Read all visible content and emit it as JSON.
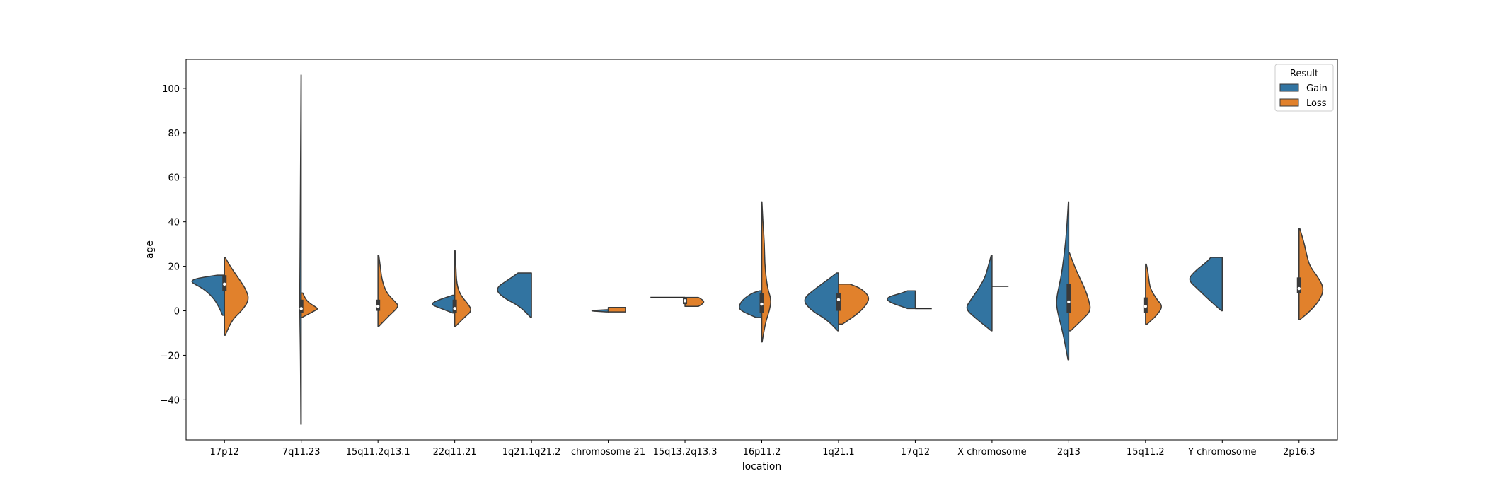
{
  "chart_data": {
    "type": "violin",
    "variant": "split",
    "xlabel": "location",
    "ylabel": "age",
    "ylim": [
      -58,
      113
    ],
    "yticks": [
      -40,
      -20,
      0,
      20,
      40,
      60,
      80,
      100
    ],
    "grid": false,
    "legend": {
      "title": "Result",
      "placement": "top-right",
      "entries": [
        {
          "label": "Gain",
          "color": "#3274a1"
        },
        {
          "label": "Loss",
          "color": "#e1812c"
        }
      ]
    },
    "categories": [
      "17p12",
      "7q11.23",
      "15q11.2q13.1",
      "22q11.21",
      "1q21.1q21.2",
      "chromosome 21",
      "15q13.2q13.3",
      "16p11.2",
      "1q21.1",
      "17q12",
      "X chromosome",
      "2q13",
      "15q11.2",
      "Y chromosome",
      "2p16.3"
    ],
    "series": [
      {
        "name": "Gain",
        "color": "#3274a1",
        "violins": [
          {
            "category": "17p12",
            "min": -2,
            "max": 16,
            "profile": [
              [
                -2,
                0.05
              ],
              [
                2,
                0.15
              ],
              [
                6,
                0.3
              ],
              [
                10,
                0.55
              ],
              [
                13,
                0.9
              ],
              [
                14.5,
                0.75
              ],
              [
                16,
                0.2
              ]
            ]
          },
          {
            "category": "7q11.23",
            "min": -51,
            "max": 106,
            "profile": [
              [
                -51,
                0.01
              ],
              [
                -20,
                0.02
              ],
              [
                0,
                0.04
              ],
              [
                30,
                0.03
              ],
              [
                60,
                0.02
              ],
              [
                106,
                0.005
              ]
            ]
          },
          null,
          {
            "category": "22q11.21",
            "min": -1,
            "max": 7,
            "profile": [
              [
                -1,
                0.05
              ],
              [
                1,
                0.35
              ],
              [
                3,
                0.65
              ],
              [
                5,
                0.4
              ],
              [
                7,
                0.05
              ]
            ]
          },
          {
            "category": "1q21.1q21.2",
            "min": -3,
            "max": 17,
            "profile": [
              [
                -3,
                0.02
              ],
              [
                2,
                0.3
              ],
              [
                6,
                0.75
              ],
              [
                10,
                0.95
              ],
              [
                14,
                0.6
              ],
              [
                17,
                0.35
              ]
            ]
          },
          {
            "category": "chromosome 21",
            "min": -0.5,
            "max": 0.5,
            "profile": [
              [
                -0.5,
                0.05
              ],
              [
                0,
                0.55
              ],
              [
                0.5,
                0.05
              ]
            ]
          },
          {
            "category": "15q13.2q13.3",
            "flat": 6,
            "width": 0.9
          },
          {
            "category": "16p11.2",
            "min": -3,
            "max": 9,
            "profile": [
              [
                -3,
                0.15
              ],
              [
                0,
                0.55
              ],
              [
                2,
                0.6
              ],
              [
                5,
                0.5
              ],
              [
                8,
                0.25
              ],
              [
                9,
                0.05
              ]
            ]
          },
          {
            "category": "1q21.1",
            "min": -9,
            "max": 17,
            "profile": [
              [
                -9,
                0.02
              ],
              [
                -4,
                0.3
              ],
              [
                0,
                0.7
              ],
              [
                5,
                0.95
              ],
              [
                10,
                0.6
              ],
              [
                15,
                0.2
              ],
              [
                17,
                0.05
              ]
            ]
          },
          {
            "category": "17q12",
            "min": 1,
            "max": 9,
            "profile": [
              [
                1,
                0.2
              ],
              [
                4,
                0.7
              ],
              [
                6,
                0.75
              ],
              [
                8,
                0.35
              ],
              [
                9,
                0.2
              ]
            ]
          },
          {
            "category": "X chromosome",
            "min": -9,
            "max": 25,
            "profile": [
              [
                -9,
                0.02
              ],
              [
                -3,
                0.45
              ],
              [
                1,
                0.7
              ],
              [
                5,
                0.55
              ],
              [
                10,
                0.35
              ],
              [
                15,
                0.18
              ],
              [
                20,
                0.1
              ],
              [
                25,
                0.02
              ]
            ]
          },
          {
            "category": "2q13",
            "min": -22,
            "max": 49,
            "profile": [
              [
                -22,
                0.02
              ],
              [
                -10,
                0.15
              ],
              [
                0,
                0.3
              ],
              [
                5,
                0.33
              ],
              [
                15,
                0.2
              ],
              [
                25,
                0.12
              ],
              [
                35,
                0.06
              ],
              [
                49,
                0.01
              ]
            ]
          },
          null,
          {
            "category": "Y chromosome",
            "min": 0,
            "max": 24,
            "profile": [
              [
                0,
                0.02
              ],
              [
                5,
                0.35
              ],
              [
                10,
                0.65
              ],
              [
                14,
                0.9
              ],
              [
                18,
                0.7
              ],
              [
                22,
                0.4
              ],
              [
                24,
                0.3
              ]
            ]
          },
          null
        ]
      },
      {
        "name": "Loss",
        "color": "#e1812c",
        "violins": [
          {
            "category": "17p12",
            "min": -11,
            "max": 24,
            "profile": [
              [
                -11,
                0.02
              ],
              [
                -4,
                0.2
              ],
              [
                0,
                0.45
              ],
              [
                5,
                0.65
              ],
              [
                10,
                0.55
              ],
              [
                15,
                0.35
              ],
              [
                20,
                0.15
              ],
              [
                24,
                0.02
              ]
            ]
          },
          {
            "category": "7q11.23",
            "min": -3,
            "max": 8,
            "profile": [
              [
                -3,
                0.02
              ],
              [
                0,
                0.35
              ],
              [
                1,
                0.45
              ],
              [
                3,
                0.25
              ],
              [
                5,
                0.12
              ],
              [
                8,
                0.04
              ]
            ]
          },
          {
            "category": "15q11.2q13.1",
            "min": -7,
            "max": 25,
            "profile": [
              [
                -7,
                0.02
              ],
              [
                -2,
                0.3
              ],
              [
                2,
                0.55
              ],
              [
                4,
                0.45
              ],
              [
                8,
                0.22
              ],
              [
                14,
                0.1
              ],
              [
                20,
                0.06
              ],
              [
                25,
                0.02
              ]
            ]
          },
          {
            "category": "22q11.21",
            "min": -7,
            "max": 27,
            "profile": [
              [
                -7,
                0.02
              ],
              [
                -3,
                0.25
              ],
              [
                0,
                0.45
              ],
              [
                3,
                0.35
              ],
              [
                7,
                0.15
              ],
              [
                12,
                0.05
              ],
              [
                20,
                0.03
              ],
              [
                27,
                0.01
              ]
            ]
          },
          null,
          {
            "category": "chromosome 21",
            "min": -0.5,
            "max": 1.5,
            "profile": [
              [
                -0.5,
                0.45
              ],
              [
                0.5,
                0.45
              ],
              [
                1.5,
                0.45
              ]
            ]
          },
          {
            "category": "15q13.2q13.3",
            "min": 2,
            "max": 6,
            "profile": [
              [
                2,
                0.35
              ],
              [
                3,
                0.45
              ],
              [
                4,
                0.5
              ],
              [
                5,
                0.45
              ],
              [
                6,
                0.35
              ]
            ]
          },
          {
            "category": "16p11.2",
            "min": -14,
            "max": 49,
            "profile": [
              [
                -14,
                0.01
              ],
              [
                -5,
                0.1
              ],
              [
                0,
                0.2
              ],
              [
                5,
                0.25
              ],
              [
                10,
                0.15
              ],
              [
                20,
                0.08
              ],
              [
                30,
                0.07
              ],
              [
                40,
                0.03
              ],
              [
                49,
                0.005
              ]
            ]
          },
          {
            "category": "1q21.1",
            "min": -6,
            "max": 12,
            "profile": [
              [
                -6,
                0.1
              ],
              [
                -2,
                0.45
              ],
              [
                2,
                0.7
              ],
              [
                6,
                0.82
              ],
              [
                10,
                0.6
              ],
              [
                12,
                0.3
              ]
            ]
          },
          {
            "category": "17q12",
            "flat": 1,
            "width": 0.43
          },
          {
            "category": "X chromosome",
            "flat": 11,
            "width": 0.43
          },
          {
            "category": "2q13",
            "min": -9,
            "max": 26,
            "profile": [
              [
                -9,
                0.05
              ],
              [
                -4,
                0.35
              ],
              [
                0,
                0.58
              ],
              [
                5,
                0.52
              ],
              [
                10,
                0.42
              ],
              [
                15,
                0.28
              ],
              [
                20,
                0.15
              ],
              [
                26,
                0.02
              ]
            ]
          },
          {
            "category": "15q11.2",
            "min": -6,
            "max": 21,
            "profile": [
              [
                -6,
                0.04
              ],
              [
                -2,
                0.3
              ],
              [
                2,
                0.45
              ],
              [
                5,
                0.3
              ],
              [
                10,
                0.12
              ],
              [
                15,
                0.08
              ],
              [
                18,
                0.06
              ],
              [
                21,
                0.02
              ]
            ]
          },
          null,
          {
            "category": "2p16.3",
            "min": -4,
            "max": 37,
            "profile": [
              [
                -4,
                0.02
              ],
              [
                0,
                0.3
              ],
              [
                5,
                0.55
              ],
              [
                10,
                0.65
              ],
              [
                15,
                0.5
              ],
              [
                20,
                0.28
              ],
              [
                25,
                0.2
              ],
              [
                30,
                0.14
              ],
              [
                37,
                0.02
              ]
            ]
          }
        ]
      }
    ],
    "boxes": [
      {
        "category": "17p12",
        "q1": 9,
        "q3": 16,
        "median": 12
      },
      {
        "category": "7q11.23",
        "q1": -1,
        "q3": 5,
        "median": 1
      },
      {
        "category": "15q11.2q13.1",
        "q1": 0,
        "q3": 5,
        "median": 2
      },
      {
        "category": "22q11.21",
        "q1": -1,
        "q3": 5,
        "median": 1
      },
      {
        "category": "15q13.2q13.3",
        "q1": 3,
        "q3": 6,
        "median": 4.5
      },
      {
        "category": "16p11.2",
        "q1": -1,
        "q3": 8,
        "median": 3
      },
      {
        "category": "1q21.1",
        "q1": 0,
        "q3": 8,
        "median": 5
      },
      {
        "category": "2q13",
        "q1": -1,
        "q3": 12,
        "median": 4
      },
      {
        "category": "15q11.2",
        "q1": -1,
        "q3": 6,
        "median": 2
      },
      {
        "category": "2p16.3",
        "q1": 8,
        "q3": 15,
        "median": 10
      }
    ]
  }
}
